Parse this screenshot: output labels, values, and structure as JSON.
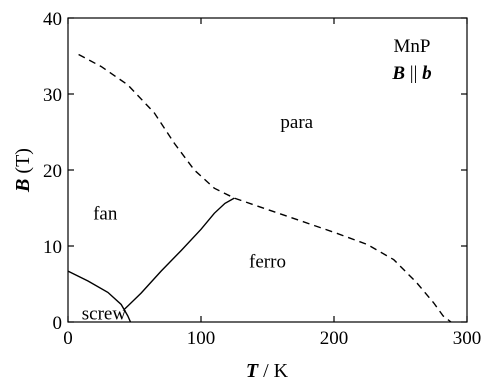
{
  "chart_data": {
    "type": "line",
    "title": "",
    "x_axis": {
      "label_var": "T",
      "label_unit": " / K",
      "range": [
        0,
        300
      ],
      "ticks": [
        0,
        100,
        200,
        300
      ],
      "tick_labels": [
        "0",
        "100",
        "200",
        "300"
      ]
    },
    "y_axis": {
      "label_var": "B",
      "label_unit": " (T)",
      "range": [
        0,
        40
      ],
      "ticks": [
        0,
        10,
        20,
        30,
        40
      ],
      "tick_labels": [
        "0",
        "10",
        "20",
        "30",
        "40"
      ]
    },
    "grid": false,
    "legend": {
      "placement": "top-right",
      "line1": "MnP",
      "line2_var1": "B",
      "line2_sep": " || ",
      "line2_var2": "b"
    },
    "region_labels": [
      {
        "text": "para",
        "x": 172,
        "y": 25.5
      },
      {
        "text": "fan",
        "x": 28,
        "y": 13.5
      },
      {
        "text": "ferro",
        "x": 150,
        "y": 7.2
      },
      {
        "text": "screw",
        "x": 27,
        "y": 0.3
      }
    ],
    "series": [
      {
        "style": "dashed",
        "points": [
          [
            8,
            35.2
          ],
          [
            25,
            33.6
          ],
          [
            45,
            31.2
          ],
          [
            65,
            27.5
          ],
          [
            80,
            23.5
          ],
          [
            95,
            20.0
          ],
          [
            110,
            17.6
          ],
          [
            125,
            16.3
          ],
          [
            150,
            14.8
          ],
          [
            175,
            13.3
          ],
          [
            200,
            11.8
          ],
          [
            225,
            10.2
          ],
          [
            245,
            8.2
          ],
          [
            262,
            5.2
          ],
          [
            275,
            2.5
          ],
          [
            282,
            0.8
          ],
          [
            288,
            0
          ]
        ]
      },
      {
        "style": "solid",
        "points": [
          [
            0,
            6.7
          ],
          [
            15,
            5.4
          ],
          [
            30,
            3.9
          ],
          [
            40,
            2.3
          ],
          [
            45,
            0.8
          ],
          [
            47,
            0
          ]
        ]
      },
      {
        "style": "solid",
        "points": [
          [
            42,
            1.6
          ],
          [
            55,
            3.8
          ],
          [
            70,
            6.7
          ],
          [
            85,
            9.4
          ],
          [
            100,
            12.2
          ],
          [
            110,
            14.3
          ],
          [
            118,
            15.6
          ],
          [
            125,
            16.3
          ]
        ]
      }
    ]
  }
}
